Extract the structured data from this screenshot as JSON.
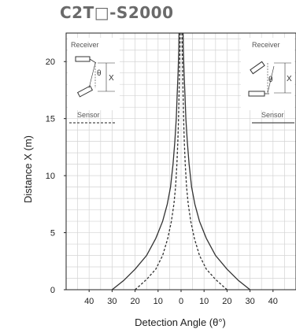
{
  "header": {
    "title": "C2T□-S2000"
  },
  "insets": {
    "left": {
      "receiver": "Receiver",
      "sensor": "Sensor",
      "theta": "θ",
      "x": "X"
    },
    "right": {
      "receiver": "Receiver",
      "sensor": "Sensor",
      "theta": "θ",
      "x": "X"
    }
  },
  "chart_data": {
    "type": "line",
    "title": "C2T□-S2000",
    "xlabel": "Detection Angle (θ°)",
    "ylabel": "Distance X (m)",
    "xlim": [
      -50,
      50
    ],
    "ylim": [
      0,
      22.5
    ],
    "x_ticks": [
      -40,
      -30,
      -20,
      -10,
      0,
      10,
      20,
      30,
      40
    ],
    "x_tick_labels": [
      "40",
      "30",
      "20",
      "10",
      "0",
      "10",
      "20",
      "30",
      "40"
    ],
    "y_ticks": [
      0,
      5,
      10,
      15,
      20
    ],
    "y_tick_labels": [
      "0",
      "5",
      "10",
      "15",
      "20"
    ],
    "grid": true,
    "series": [
      {
        "style": "solid",
        "points": [
          [
            0.9,
            22.5
          ],
          [
            1,
            21
          ],
          [
            1.3,
            19
          ],
          [
            1.7,
            17
          ],
          [
            2.1,
            15
          ],
          [
            2.7,
            13
          ],
          [
            3.5,
            11
          ],
          [
            4.6,
            9
          ],
          [
            6,
            7.5
          ],
          [
            8,
            6
          ],
          [
            11,
            4.5
          ],
          [
            15,
            3
          ],
          [
            20,
            1.8
          ],
          [
            25,
            0.8
          ],
          [
            30,
            0
          ]
        ]
      },
      {
        "style": "dashed",
        "points": [
          [
            0.4,
            22.5
          ],
          [
            0.5,
            21
          ],
          [
            0.7,
            19
          ],
          [
            0.9,
            17
          ],
          [
            1.1,
            15
          ],
          [
            1.4,
            13
          ],
          [
            1.8,
            11
          ],
          [
            2.4,
            9
          ],
          [
            3.1,
            7.5
          ],
          [
            4.2,
            6
          ],
          [
            5.8,
            4.5
          ],
          [
            8,
            3
          ],
          [
            11,
            1.8
          ],
          [
            15,
            0.9
          ],
          [
            20,
            0
          ]
        ]
      }
    ]
  }
}
